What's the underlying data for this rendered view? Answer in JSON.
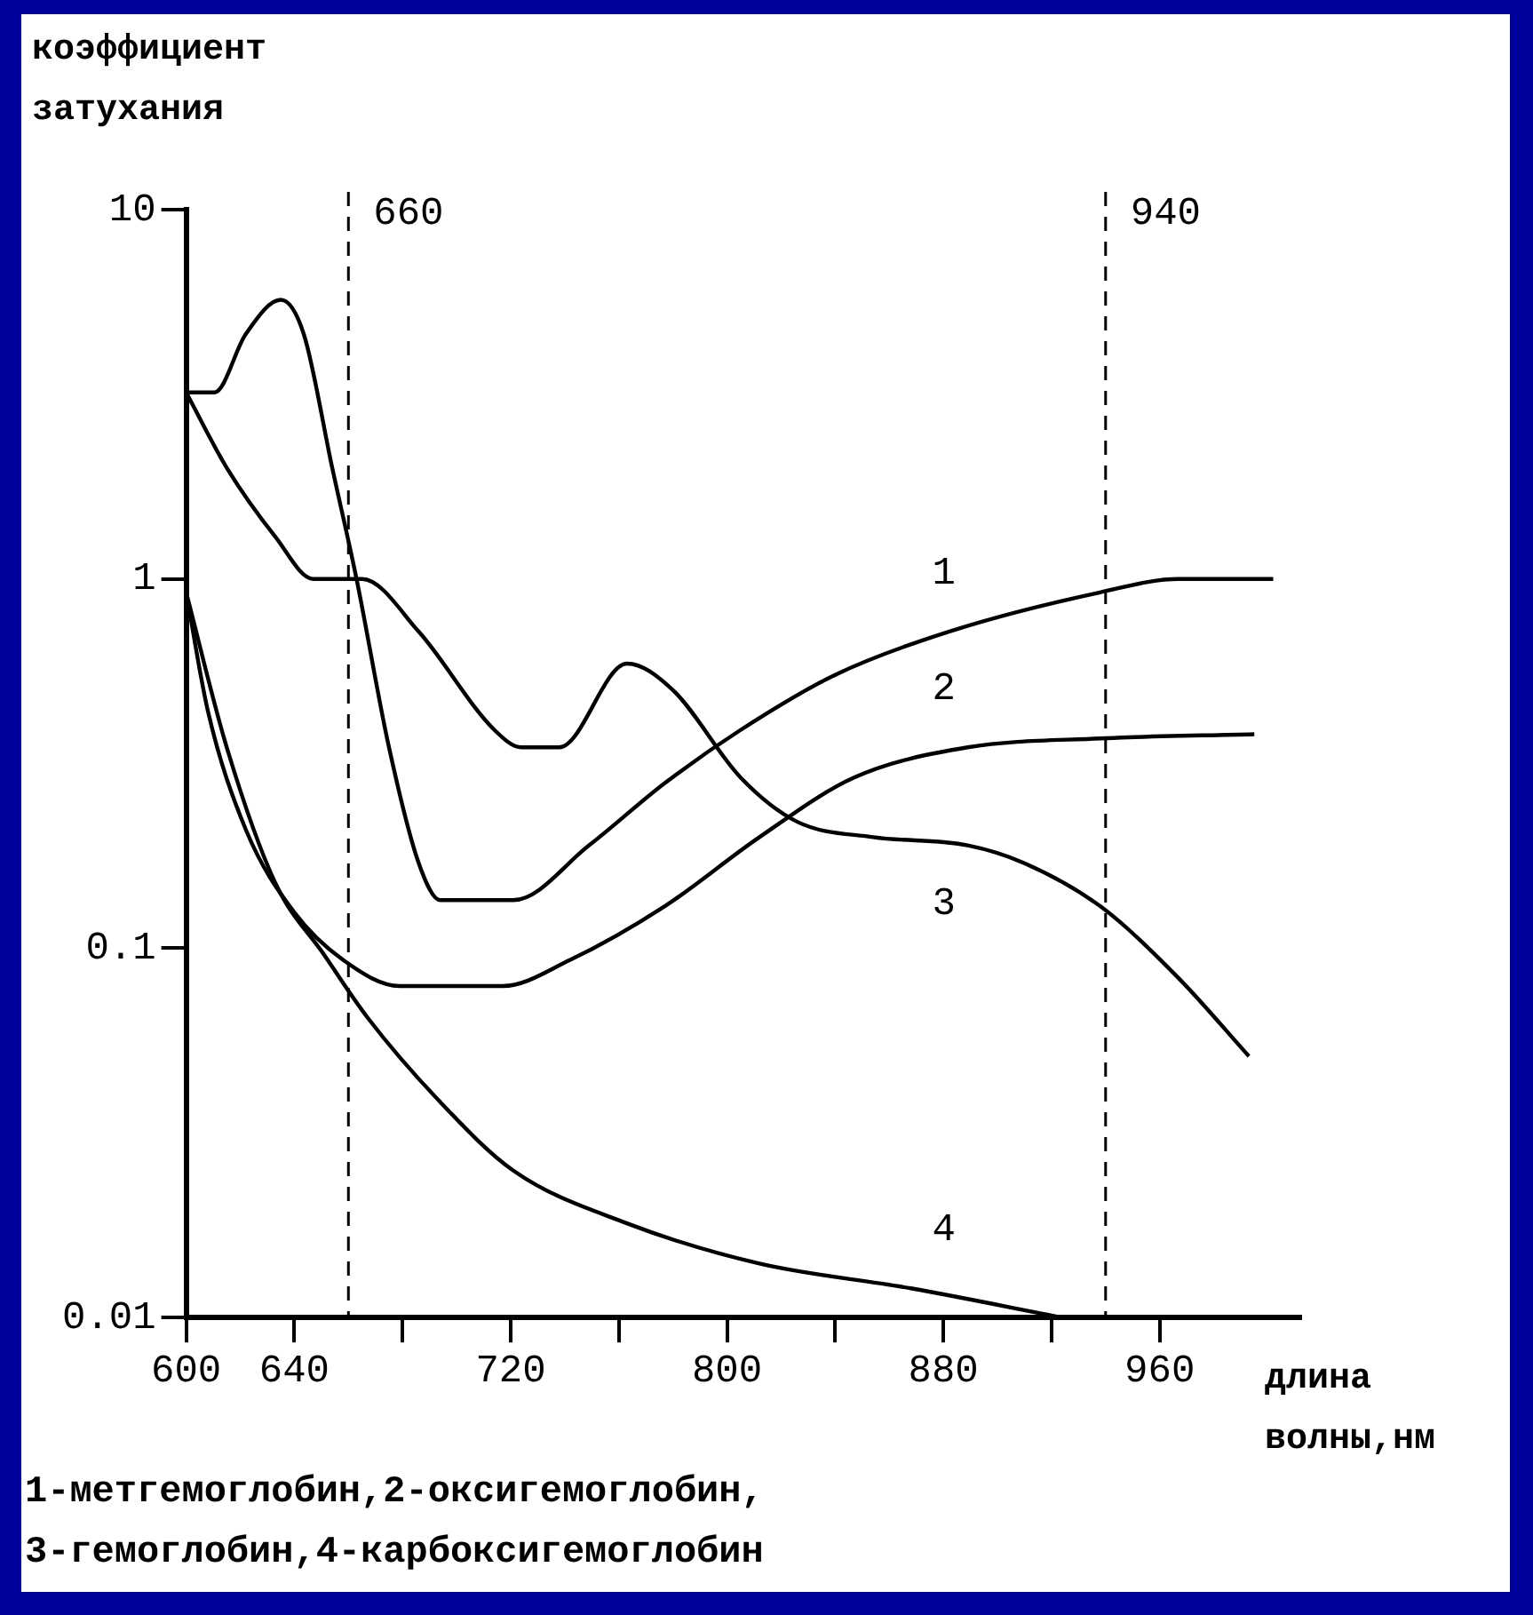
{
  "chart_data": {
    "type": "line",
    "ylabel": "коэффициент\nзатухания",
    "xlabel": "длина\nволны,нм",
    "series": [
      {
        "name": "1",
        "color": "#000000",
        "x": [
          600,
          610.5,
          622,
          635,
          643.5,
          654,
          663,
          675,
          686,
          694,
          721,
          749,
          777,
          805,
          840,
          882,
          938,
          967,
          1002
        ],
        "values": [
          3.2,
          3.2,
          4.6,
          5.7,
          4.6,
          2.0,
          1.0,
          0.35,
          0.17,
          0.135,
          0.135,
          0.19,
          0.28,
          0.39,
          0.55,
          0.72,
          0.92,
          1.0,
          1.0
        ]
      },
      {
        "name": "2",
        "color": "#000000",
        "x": [
          600,
          608,
          622,
          640,
          658,
          679,
          717,
          742,
          777,
          812,
          847,
          889,
          938,
          995
        ],
        "values": [
          0.92,
          0.44,
          0.21,
          0.125,
          0.093,
          0.079,
          0.079,
          0.093,
          0.13,
          0.2,
          0.29,
          0.35,
          0.37,
          0.38
        ]
      },
      {
        "name": "3",
        "color": "#000000",
        "x": [
          600,
          615,
          633,
          647,
          665,
          686,
          714,
          724,
          738,
          763,
          780,
          805,
          826,
          854,
          889,
          910,
          938,
          967,
          993
        ],
        "values": [
          3.2,
          2.0,
          1.3,
          1.0,
          1.0,
          0.72,
          0.39,
          0.35,
          0.35,
          0.59,
          0.5,
          0.29,
          0.22,
          0.2,
          0.19,
          0.17,
          0.13,
          0.083,
          0.051
        ]
      },
      {
        "name": "4",
        "color": "#000000",
        "x": [
          600,
          615,
          633,
          651,
          667,
          693,
          721,
          763,
          812,
          868,
          924
        ],
        "values": [
          0.92,
          0.35,
          0.15,
          0.096,
          0.065,
          0.039,
          0.025,
          0.018,
          0.014,
          0.012,
          0.01
        ]
      }
    ],
    "xlim": [
      600,
      1012
    ],
    "xticks": [
      600,
      640,
      {
        "value": 680,
        "label": null
      },
      720,
      {
        "value": 760,
        "label": null
      },
      800,
      {
        "value": 840,
        "label": null
      },
      880,
      {
        "value": 920,
        "label": null
      },
      960
    ],
    "ylim": [
      0.01,
      10
    ],
    "yticks": [
      0.01,
      0.1,
      1,
      10
    ],
    "log": "y",
    "grid": false,
    "legend": false,
    "marker": "none",
    "line_style": "solid",
    "ref_lines": [
      {
        "axis": "x",
        "value": 660,
        "label": "660",
        "color": "#000000",
        "line_style": "dashed"
      },
      {
        "axis": "x",
        "value": 940,
        "label": "940",
        "color": "#000000",
        "line_style": "dashed"
      }
    ],
    "annotations": [
      "1-метгемоглобин,2-оксигемоглобин,",
      "3-гемоглобин,4-карбоксигемоглобин"
    ]
  }
}
